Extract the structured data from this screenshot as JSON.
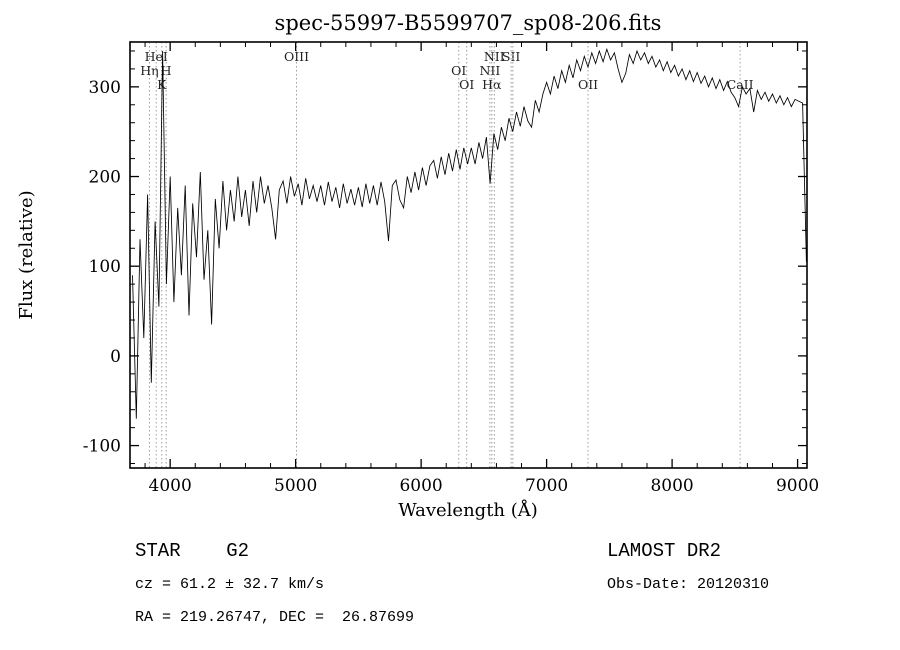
{
  "chart_data": {
    "type": "line",
    "title": "spec-55997-B5599707_sp08-206.fits",
    "xlabel": "Wavelength (Å)",
    "ylabel": "Flux (relative)",
    "xlim": [
      3680,
      9075
    ],
    "ylim": [
      -125,
      350
    ],
    "xticks": [
      4000,
      5000,
      6000,
      7000,
      8000,
      9000
    ],
    "yticks": [
      -100,
      0,
      100,
      200,
      300
    ],
    "x_minor_step": 200,
    "y_minor_step": 20,
    "grid": "off",
    "legend": "none",
    "line_color": "#000000",
    "marker_line_color": "#9a9a9a",
    "x_start": 3700,
    "x_step": 30,
    "flux": [
      90,
      -70,
      130,
      20,
      180,
      -30,
      150,
      55,
      340,
      80,
      200,
      60,
      165,
      90,
      190,
      45,
      170,
      110,
      205,
      85,
      140,
      35,
      175,
      120,
      195,
      140,
      185,
      150,
      200,
      155,
      185,
      145,
      195,
      160,
      200,
      170,
      190,
      165,
      130,
      185,
      195,
      170,
      200,
      178,
      192,
      168,
      198,
      175,
      190,
      172,
      190,
      168,
      194,
      172,
      188,
      165,
      192,
      170,
      186,
      168,
      188,
      166,
      192,
      170,
      190,
      168,
      194,
      172,
      128,
      190,
      196,
      174,
      165,
      200,
      182,
      205,
      185,
      210,
      190,
      212,
      218,
      198,
      222,
      202,
      226,
      206,
      230,
      208,
      232,
      214,
      232,
      214,
      238,
      220,
      244,
      192,
      248,
      230,
      255,
      240,
      265,
      250,
      272,
      256,
      278,
      262,
      255,
      285,
      272,
      292,
      305,
      292,
      312,
      298,
      318,
      305,
      324,
      310,
      330,
      318,
      334,
      322,
      338,
      326,
      340,
      328,
      342,
      330,
      338,
      320,
      305,
      315,
      336,
      326,
      340,
      330,
      338,
      326,
      334,
      322,
      330,
      318,
      328,
      316,
      324,
      312,
      320,
      308,
      318,
      306,
      316,
      304,
      312,
      300,
      310,
      298,
      308,
      296,
      306,
      294,
      288,
      278,
      300,
      292,
      298,
      272,
      296,
      286,
      294,
      284,
      292,
      282,
      290,
      280,
      288,
      278,
      286,
      284,
      282,
      105
    ],
    "spectral_lines": [
      {
        "label": "Hη",
        "wavelength": 3835,
        "row": 1
      },
      {
        "label": "HeI",
        "wavelength": 3889,
        "row": 0
      },
      {
        "label": "K",
        "wavelength": 3933,
        "row": 2
      },
      {
        "label": "H",
        "wavelength": 3968,
        "row": 1
      },
      {
        "label": "OIII",
        "wavelength": 5007,
        "row": 0
      },
      {
        "label": "OI",
        "wavelength": 6300,
        "row": 1
      },
      {
        "label": "OI",
        "wavelength": 6363,
        "row": 2
      },
      {
        "label": "NII",
        "wavelength": 6548,
        "row": 1
      },
      {
        "label": "Hα",
        "wavelength": 6563,
        "row": 2
      },
      {
        "label": "NII",
        "wavelength": 6583,
        "row": 0
      },
      {
        "label": "SII",
        "wavelength": 6717,
        "row": 0
      },
      {
        "label": "",
        "wavelength": 6731,
        "row": 0
      },
      {
        "label": "OII",
        "wavelength": 7330,
        "row": 2
      },
      {
        "label": "CaII",
        "wavelength": 8542,
        "row": 2
      }
    ]
  },
  "annotations": {
    "classification": "STAR    G2",
    "cz": "cz = 61.2 ± 32.7 km/s",
    "radec": "RA = 219.26747, DEC =  26.87699",
    "survey": "LAMOST DR2",
    "obs_date": "Obs-Date: 20120310"
  }
}
